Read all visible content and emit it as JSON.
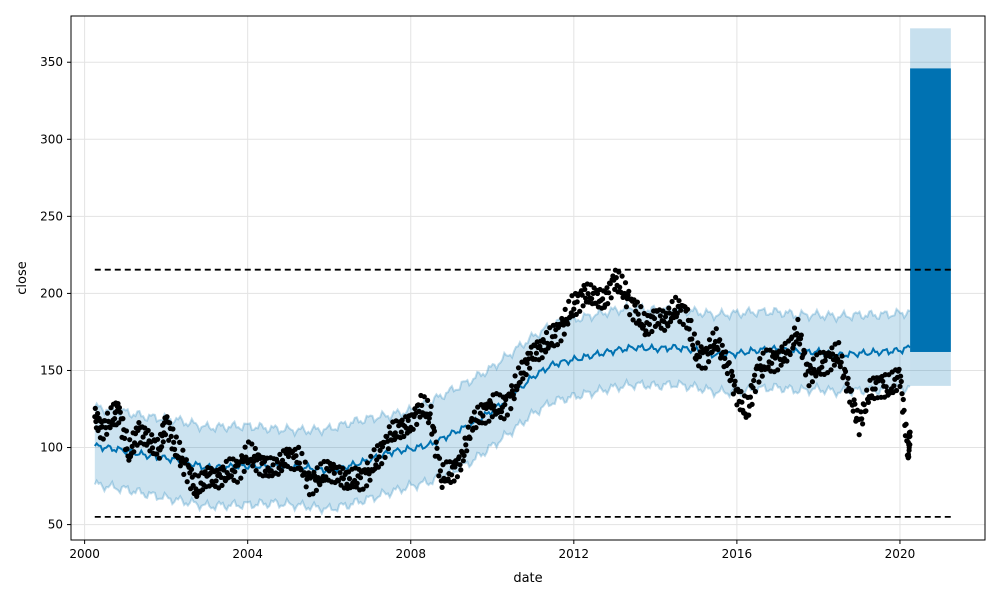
{
  "chart_data": {
    "type": "line",
    "title": "",
    "xlabel": "date",
    "ylabel": "close",
    "xlim": [
      "1999-09-01",
      "2022-02-01"
    ],
    "ylim": [
      40,
      380
    ],
    "x_ticks": [
      "2000-01-01",
      "2004-01-01",
      "2008-01-01",
      "2012-01-01",
      "2016-01-01",
      "2020-01-01"
    ],
    "x_tick_labels": [
      "2000",
      "2004",
      "2008",
      "2012",
      "2016",
      "2020"
    ],
    "y_ticks": [
      50,
      100,
      150,
      200,
      250,
      300,
      350
    ],
    "grid": true,
    "legend": "none",
    "colors": {
      "forecast_line": "#0072B2",
      "uncertainty_band": "#0072B2",
      "actual_points": "#000000",
      "cap_floor_lines": "#000000"
    },
    "series": [
      {
        "kind": "forecast_mean",
        "x": [
          "2000-04-01",
          "2001-01-01",
          "2001-07-01",
          "2002-04-01",
          "2003-01-01",
          "2004-01-01",
          "2004-09-01",
          "2005-06-01",
          "2006-01-01",
          "2006-07-01",
          "2007-01-01",
          "2007-07-01",
          "2008-01-01",
          "2008-07-01",
          "2009-01-01",
          "2009-07-01",
          "2010-01-01",
          "2010-07-01",
          "2011-01-01",
          "2011-07-01",
          "2012-01-01",
          "2012-07-01",
          "2013-01-01",
          "2013-07-01",
          "2014-01-01",
          "2014-07-01",
          "2015-01-01",
          "2015-07-01",
          "2016-01-01",
          "2016-07-01",
          "2017-01-01",
          "2017-07-01",
          "2018-01-01",
          "2018-07-01",
          "2019-01-01",
          "2019-07-01",
          "2020-01-01",
          "2020-04-01"
        ],
        "y": [
          101,
          98,
          95,
          92,
          87,
          88,
          88,
          87,
          85,
          88,
          92,
          97,
          99,
          102,
          109,
          115,
          124,
          134,
          146,
          154,
          157,
          160,
          163,
          165,
          164,
          165,
          163,
          160,
          161,
          163,
          164,
          162,
          162,
          160,
          161,
          162,
          163,
          165
        ]
      },
      {
        "kind": "uncertainty_band",
        "x": [
          "2000-04-01",
          "2001-01-01",
          "2001-07-01",
          "2002-04-01",
          "2003-01-01",
          "2004-01-01",
          "2004-09-01",
          "2005-06-01",
          "2006-01-01",
          "2006-07-01",
          "2007-01-01",
          "2007-07-01",
          "2008-01-01",
          "2008-07-01",
          "2009-01-01",
          "2009-07-01",
          "2010-01-01",
          "2010-07-01",
          "2011-01-01",
          "2011-07-01",
          "2012-01-01",
          "2012-07-01",
          "2013-01-01",
          "2013-07-01",
          "2014-01-01",
          "2014-07-01",
          "2015-01-01",
          "2015-07-01",
          "2016-01-01",
          "2016-07-01",
          "2017-01-01",
          "2017-07-01",
          "2018-01-01",
          "2018-07-01",
          "2019-01-01",
          "2019-07-01",
          "2020-01-01",
          "2020-04-01"
        ],
        "upper": [
          126,
          123,
          120,
          118,
          113,
          114,
          112,
          111,
          112,
          116,
          119,
          121,
          124,
          130,
          137,
          144,
          152,
          162,
          172,
          180,
          183,
          186,
          189,
          191,
          189,
          190,
          188,
          186,
          187,
          188,
          188,
          186,
          186,
          185,
          186,
          186,
          187,
          188
        ],
        "lower": [
          76,
          73,
          70,
          66,
          62,
          63,
          64,
          62,
          60,
          63,
          67,
          71,
          75,
          78,
          84,
          91,
          101,
          111,
          122,
          130,
          133,
          136,
          139,
          141,
          140,
          141,
          139,
          136,
          136,
          138,
          139,
          137,
          138,
          136,
          137,
          137,
          138,
          139
        ]
      },
      {
        "kind": "actual",
        "x": [
          "2000-04-01",
          "2000-06-01",
          "2000-09-01",
          "2000-11-01",
          "2001-02-01",
          "2001-05-01",
          "2001-08-01",
          "2001-11-01",
          "2002-01-01",
          "2002-04-01",
          "2002-07-01",
          "2002-10-01",
          "2003-01-01",
          "2003-04-01",
          "2003-07-01",
          "2003-10-01",
          "2004-01-01",
          "2004-04-01",
          "2004-07-01",
          "2004-10-01",
          "2005-01-01",
          "2005-04-01",
          "2005-07-01",
          "2005-10-01",
          "2006-01-01",
          "2006-04-01",
          "2006-07-01",
          "2006-10-01",
          "2007-01-01",
          "2007-04-01",
          "2007-07-01",
          "2007-10-01",
          "2008-01-01",
          "2008-04-01",
          "2008-07-01",
          "2008-10-01",
          "2009-01-01",
          "2009-04-01",
          "2009-07-01",
          "2009-10-01",
          "2010-01-01",
          "2010-04-01",
          "2010-07-01",
          "2010-10-01",
          "2011-01-01",
          "2011-04-01",
          "2011-07-01",
          "2011-10-01",
          "2012-01-01",
          "2012-04-01",
          "2012-07-01",
          "2012-10-01",
          "2013-01-01",
          "2013-04-01",
          "2013-07-01",
          "2013-10-01",
          "2014-01-01",
          "2014-04-01",
          "2014-07-01",
          "2014-10-01",
          "2015-01-01",
          "2015-04-01",
          "2015-07-01",
          "2015-10-01",
          "2016-01-01",
          "2016-04-01",
          "2016-07-01",
          "2016-10-01",
          "2017-01-01",
          "2017-04-01",
          "2017-07-01",
          "2017-10-01",
          "2018-01-01",
          "2018-04-01",
          "2018-07-01",
          "2018-10-01",
          "2019-01-01",
          "2019-04-01",
          "2019-07-01",
          "2019-10-01",
          "2020-01-01",
          "2020-03-15",
          "2020-04-01"
        ],
        "y": [
          120,
          112,
          118,
          125,
          95,
          112,
          104,
          98,
          118,
          98,
          88,
          72,
          82,
          80,
          84,
          86,
          95,
          92,
          86,
          88,
          95,
          92,
          78,
          80,
          86,
          82,
          78,
          80,
          85,
          96,
          108,
          112,
          116,
          127,
          120,
          80,
          84,
          92,
          115,
          122,
          127,
          125,
          135,
          150,
          162,
          165,
          172,
          180,
          192,
          200,
          198,
          195,
          210,
          200,
          190,
          178,
          185,
          182,
          190,
          188,
          160,
          160,
          170,
          155,
          135,
          122,
          150,
          155,
          158,
          162,
          176,
          148,
          152,
          158,
          160,
          138,
          115,
          135,
          142,
          138,
          148,
          95,
          110
        ]
      }
    ],
    "reference_lines": [
      {
        "kind": "cap",
        "y": 215.4,
        "x_start": "2000-04-01",
        "x_end": "2021-04-01",
        "style": "dashed"
      },
      {
        "kind": "floor",
        "y": 55,
        "x_start": "2000-04-01",
        "x_end": "2021-04-01",
        "style": "dashed"
      }
    ],
    "forecast_region": {
      "x_start": "2020-04-01",
      "x_end": "2021-04-01",
      "mean_upper": 346,
      "mean_lower": 162,
      "band_upper": 372,
      "band_lower": 140
    }
  }
}
